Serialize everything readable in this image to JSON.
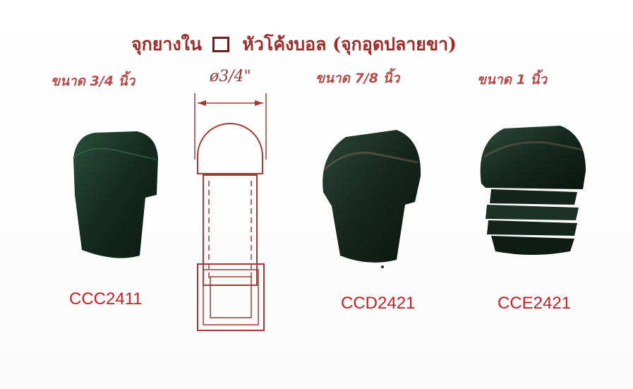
{
  "title": {
    "part1": "จุกยางใน",
    "square_icon": "hollow-square-icon",
    "part2": "หัวโค้งบอล (จุกอุดปลายขา)"
  },
  "drawing": {
    "diameter_label": "ø3/4\""
  },
  "products": [
    {
      "size_label": "ขนาด 3/4 นิ้ว",
      "code": "CCC2411",
      "color": "#1b3a2c"
    },
    {
      "size_label": "ขนาด 7/8 นิ้ว",
      "code": "CCD2421",
      "color": "#1c2e24"
    },
    {
      "size_label": "ขนาด 1 นิ้ว",
      "code": "CCE2421",
      "color": "#1a2f25"
    }
  ],
  "colors": {
    "title": "#9a2d2a",
    "size_label": "#b54a4a",
    "code": "#c81e23",
    "drawing_line": "#a33a35"
  }
}
